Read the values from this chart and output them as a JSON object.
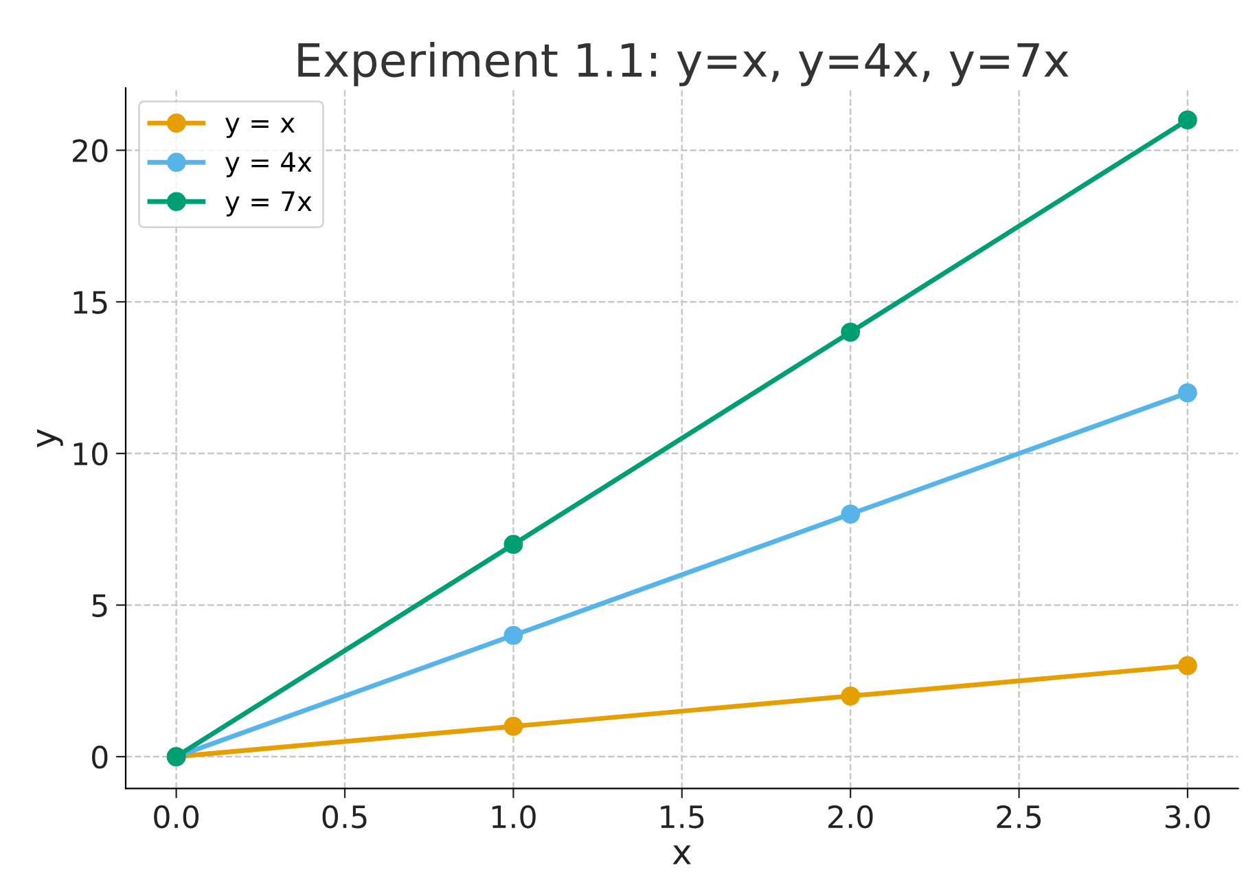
{
  "chart_data": {
    "type": "line",
    "title": "Experiment 1.1: y=x, y=4x, y=7x",
    "xlabel": "x",
    "ylabel": "y",
    "x": [
      0,
      1,
      2,
      3
    ],
    "series": [
      {
        "name": "y = x",
        "color": "#e69f00",
        "values": [
          0,
          1,
          2,
          3
        ]
      },
      {
        "name": "y = 4x",
        "color": "#56b4e9",
        "values": [
          0,
          4,
          8,
          12
        ]
      },
      {
        "name": "y = 7x",
        "color": "#009e73",
        "values": [
          0,
          7,
          14,
          21
        ]
      }
    ],
    "xlim": [
      -0.15,
      3.15
    ],
    "ylim": [
      -1.05,
      22.05
    ],
    "xticks": [
      {
        "value": 0,
        "label": "0.0"
      },
      {
        "value": 0.5,
        "label": "0.5"
      },
      {
        "value": 1,
        "label": "1.0"
      },
      {
        "value": 1.5,
        "label": "1.5"
      },
      {
        "value": 2,
        "label": "2.0"
      },
      {
        "value": 2.5,
        "label": "2.5"
      },
      {
        "value": 3,
        "label": "3.0"
      }
    ],
    "yticks": [
      0,
      5,
      10,
      15,
      20
    ],
    "grid": true,
    "legend": "top left",
    "marker": "circle",
    "line_style": "solid"
  }
}
